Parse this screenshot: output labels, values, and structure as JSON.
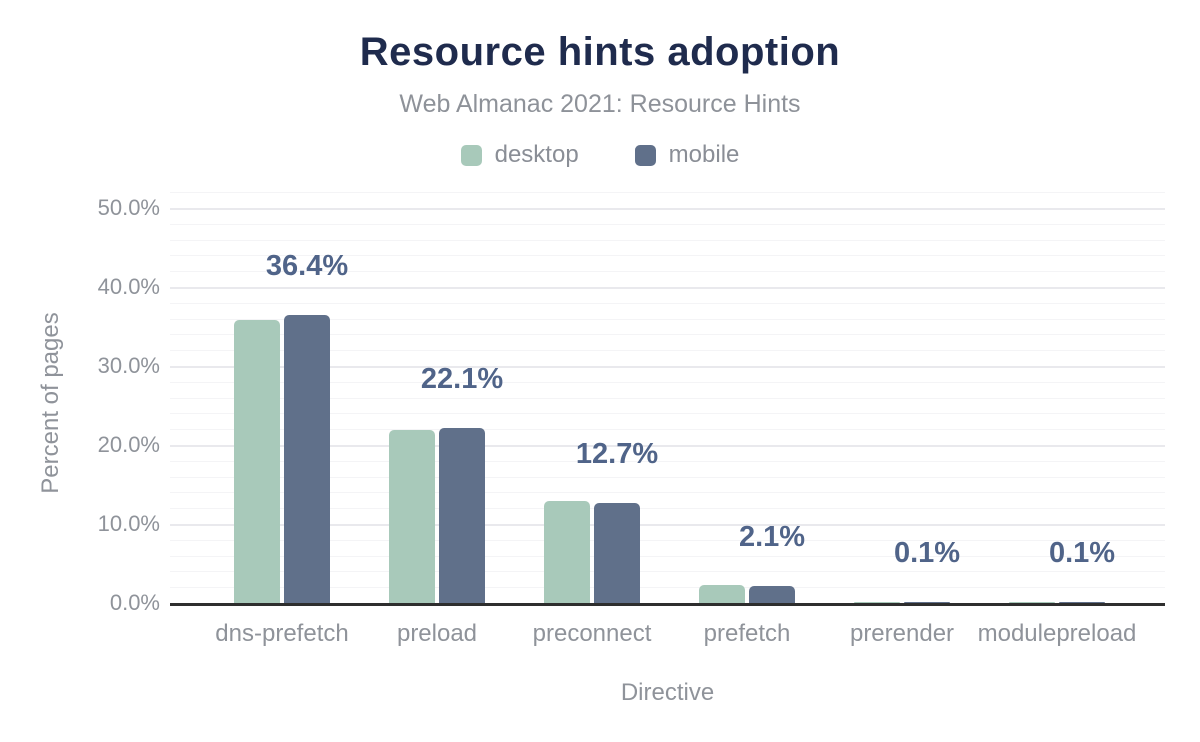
{
  "header": {
    "title": "Resource hints adoption",
    "subtitle": "Web Almanac 2021: Resource Hints"
  },
  "chart_data": {
    "type": "bar",
    "title": "Resource hints adoption",
    "subtitle": "Web Almanac 2021: Resource Hints",
    "categories": [
      "dns-prefetch",
      "preload",
      "preconnect",
      "prefetch",
      "prerender",
      "modulepreload"
    ],
    "series": [
      {
        "name": "desktop",
        "color": "#a8c9ba",
        "values": [
          35.8,
          21.9,
          12.9,
          2.3,
          0.1,
          0.1
        ]
      },
      {
        "name": "mobile",
        "color": "#60708a",
        "values": [
          36.4,
          22.1,
          12.7,
          2.1,
          0.1,
          0.1
        ]
      }
    ],
    "value_labels": [
      "36.4%",
      "22.1%",
      "12.7%",
      "2.1%",
      "0.1%",
      "0.1%"
    ],
    "value_labels_series": "mobile",
    "xlabel": "Directive",
    "ylabel": "Percent of pages",
    "ylim": [
      0,
      50
    ],
    "ytick_labels": [
      "0.0%",
      "10.0%",
      "20.0%",
      "30.0%",
      "40.0%",
      "50.0%"
    ],
    "grid": {
      "major_step": 10,
      "minor_step": 2,
      "minor_max": 52
    },
    "legend_position": "top"
  },
  "colors": {
    "title": "#1f2b4d",
    "subtitle": "#8e9299",
    "axis_text": "#8f939a",
    "value_label": "#506489",
    "baseline": "#2e2e2e",
    "grid_major": "#e9e9ed",
    "grid_minor": "#f4f4f6",
    "desktop_bar": "#a8c9ba",
    "mobile_bar": "#60708a",
    "background": "#ffffff"
  }
}
